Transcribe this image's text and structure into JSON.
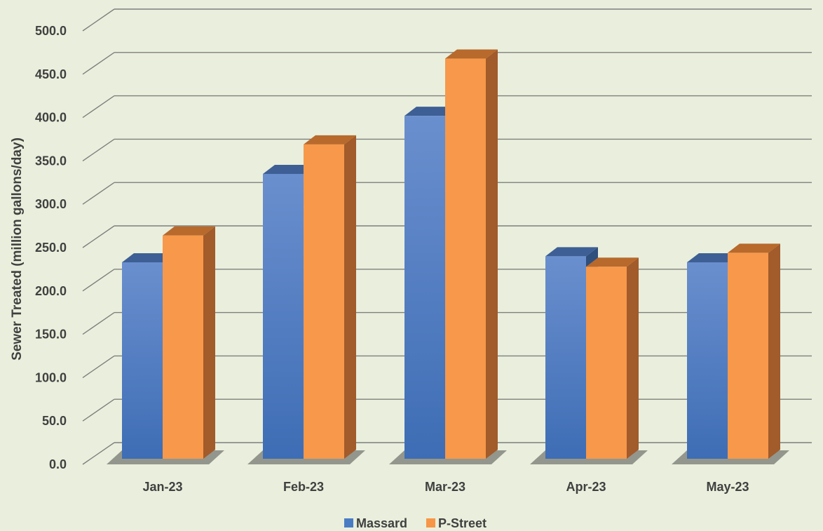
{
  "chart_data": {
    "type": "bar",
    "style": "3d-clustered-column",
    "categories": [
      "Jan-23",
      "Feb-23",
      "Mar-23",
      "Apr-23",
      "May-23"
    ],
    "series": [
      {
        "name": "Massard",
        "color": "#4a7cc4",
        "values": [
          233,
          335,
          402,
          240,
          233
        ]
      },
      {
        "name": "P-Street",
        "color": "#f79646",
        "values": [
          264,
          369,
          468,
          228,
          244
        ]
      }
    ],
    "ylabel": "Sewer Treated (million gallons/day)",
    "xlabel": "",
    "ylim": [
      0,
      500
    ],
    "yticks": [
      "0.0",
      "50.0",
      "100.0",
      "150.0",
      "200.0",
      "250.0",
      "300.0",
      "350.0",
      "400.0",
      "450.0",
      "500.0"
    ],
    "grid": true,
    "legend_position": "bottom",
    "background_color": "#e9efdc"
  }
}
